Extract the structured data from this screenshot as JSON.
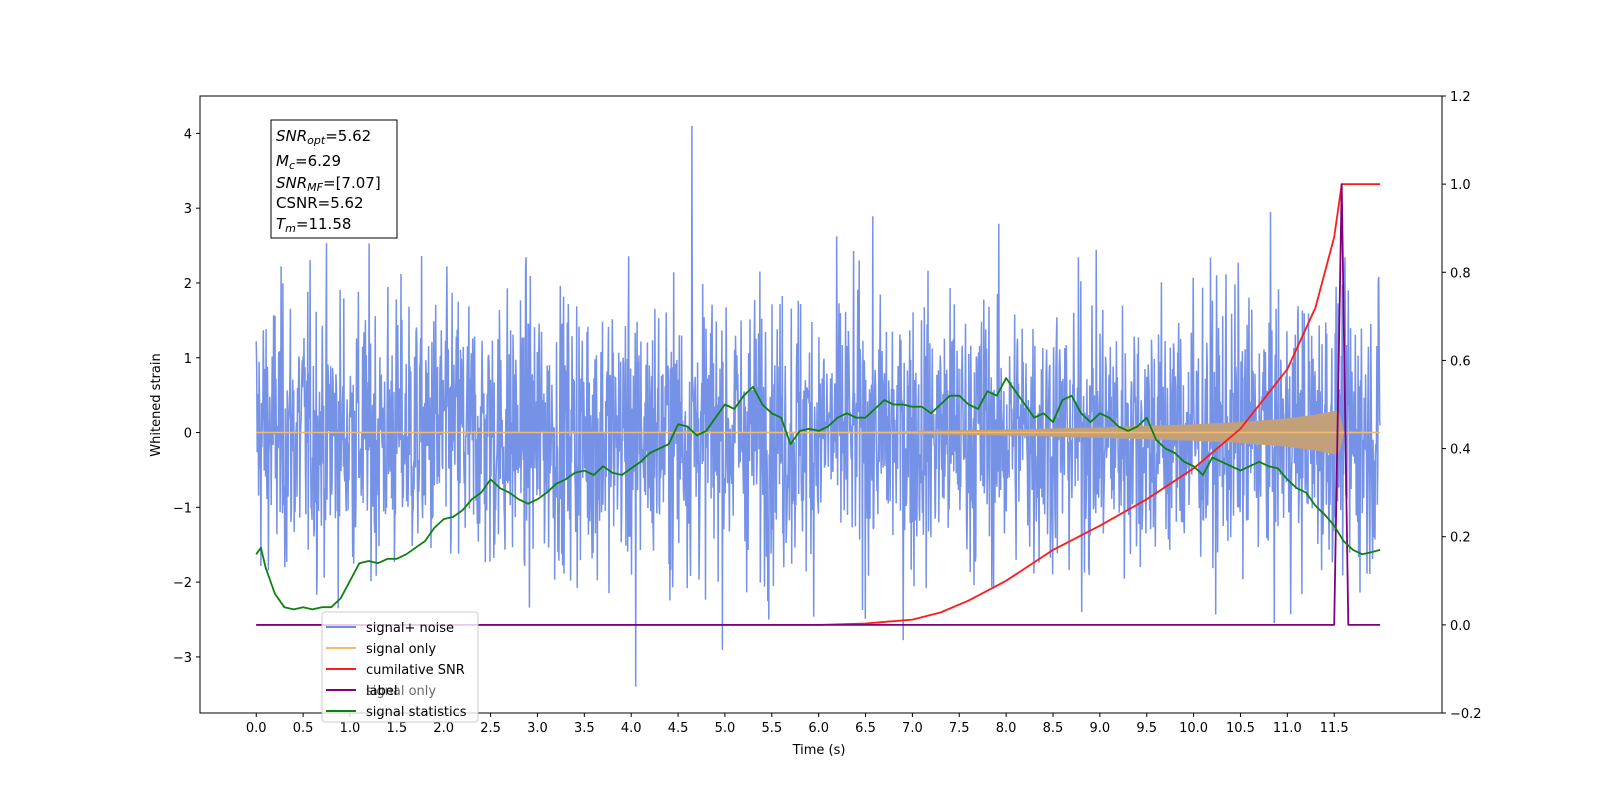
{
  "chart_data": {
    "type": "line",
    "title": "",
    "xlabel": "Time (s)",
    "ylabel": "Whitened strain",
    "xlim": [
      -0.6,
      12.65
    ],
    "ylim": [
      -3.75,
      4.5
    ],
    "y2lim": [
      -0.2,
      1.2
    ],
    "grid": false,
    "legend_position": "lower-left",
    "x_ticks": [
      "0.0",
      "0.5",
      "1.0",
      "1.5",
      "2.0",
      "2.5",
      "3.0",
      "3.5",
      "4.0",
      "4.5",
      "5.0",
      "5.5",
      "6.0",
      "6.5",
      "7.0",
      "7.5",
      "8.0",
      "8.5",
      "9.0",
      "9.5",
      "10.0",
      "10.5",
      "11.0",
      "11.5"
    ],
    "y_ticks": [
      "4",
      "3",
      "2",
      "1",
      "0",
      "−1",
      "−2",
      "−3"
    ],
    "y2_ticks": [
      "1.2",
      "1.0",
      "0.8",
      "0.6",
      "0.4",
      "0.2",
      "0.0",
      "−0.2"
    ],
    "annotation": {
      "snr_opt": "=5.62",
      "mc": "=6.29",
      "snr_mf": "=[7.07]",
      "csnr": "CSNR=5.62",
      "tm": "=11.58"
    },
    "series": [
      {
        "name": "signal+ noise",
        "color": "#6f8ce6",
        "axis": "left",
        "description_values": "whitened noisy strain, roughly uniform envelope about ±2.2 with spikes up to 4.1 (t≈4.65) and down to -3.4 (t≈4.05)",
        "x_range": [
          0.0,
          11.99
        ]
      },
      {
        "name": "signal only",
        "color": "#f0bb6e",
        "axis": "left",
        "envelope": {
          "x": [
            0.0,
            6.5,
            8.0,
            9.0,
            10.0,
            10.5,
            11.0,
            11.3,
            11.55,
            11.6,
            11.99
          ],
          "amplitude": [
            0.0,
            0.01,
            0.04,
            0.07,
            0.11,
            0.14,
            0.19,
            0.24,
            0.3,
            0.02,
            0.0
          ]
        }
      },
      {
        "name": "cumilative SNR",
        "color": "#ff1a1a",
        "axis": "right",
        "x": [
          0.0,
          6.0,
          6.5,
          7.0,
          7.3,
          7.6,
          8.0,
          8.5,
          9.0,
          9.5,
          10.0,
          10.5,
          11.0,
          11.3,
          11.5,
          11.58,
          11.99
        ],
        "y": [
          0.0,
          0.0,
          0.003,
          0.012,
          0.028,
          0.055,
          0.1,
          0.17,
          0.225,
          0.285,
          0.355,
          0.445,
          0.58,
          0.72,
          0.88,
          1.0,
          1.0
        ]
      },
      {
        "name": "label",
        "color": "#800080",
        "axis": "right",
        "x": [
          0.0,
          11.5,
          11.58,
          11.65,
          11.99
        ],
        "y": [
          0.0,
          0.0,
          1.0,
          0.0,
          0.0
        ]
      },
      {
        "name": "signal statistics",
        "color": "#108010",
        "axis": "right",
        "x": [
          0.0,
          0.05,
          0.1,
          0.2,
          0.3,
          0.4,
          0.5,
          0.6,
          0.7,
          0.8,
          0.9,
          1.0,
          1.1,
          1.2,
          1.3,
          1.4,
          1.5,
          1.6,
          1.7,
          1.8,
          1.9,
          2.0,
          2.1,
          2.2,
          2.3,
          2.4,
          2.5,
          2.6,
          2.7,
          2.8,
          2.9,
          3.0,
          3.1,
          3.2,
          3.3,
          3.4,
          3.5,
          3.6,
          3.7,
          3.8,
          3.9,
          4.0,
          4.1,
          4.2,
          4.3,
          4.4,
          4.5,
          4.6,
          4.7,
          4.8,
          4.9,
          5.0,
          5.1,
          5.2,
          5.3,
          5.4,
          5.5,
          5.6,
          5.7,
          5.8,
          5.9,
          6.0,
          6.1,
          6.2,
          6.3,
          6.4,
          6.5,
          6.6,
          6.7,
          6.8,
          6.9,
          7.0,
          7.1,
          7.2,
          7.3,
          7.4,
          7.5,
          7.6,
          7.7,
          7.8,
          7.9,
          8.0,
          8.1,
          8.2,
          8.3,
          8.4,
          8.5,
          8.6,
          8.7,
          8.8,
          8.9,
          9.0,
          9.1,
          9.2,
          9.3,
          9.4,
          9.5,
          9.6,
          9.7,
          9.8,
          9.9,
          10.0,
          10.1,
          10.2,
          10.3,
          10.4,
          10.5,
          10.6,
          10.7,
          10.8,
          10.9,
          11.0,
          11.1,
          11.2,
          11.3,
          11.4,
          11.5,
          11.6,
          11.7,
          11.8,
          11.9,
          11.99
        ],
        "y": [
          0.16,
          0.175,
          0.13,
          0.07,
          0.04,
          0.035,
          0.04,
          0.035,
          0.04,
          0.04,
          0.06,
          0.1,
          0.14,
          0.145,
          0.14,
          0.15,
          0.15,
          0.16,
          0.175,
          0.19,
          0.22,
          0.24,
          0.245,
          0.26,
          0.285,
          0.3,
          0.33,
          0.31,
          0.3,
          0.285,
          0.275,
          0.285,
          0.3,
          0.32,
          0.33,
          0.345,
          0.35,
          0.34,
          0.36,
          0.345,
          0.34,
          0.355,
          0.37,
          0.39,
          0.4,
          0.41,
          0.455,
          0.45,
          0.43,
          0.44,
          0.47,
          0.5,
          0.49,
          0.52,
          0.54,
          0.5,
          0.48,
          0.47,
          0.41,
          0.44,
          0.445,
          0.44,
          0.45,
          0.47,
          0.48,
          0.47,
          0.47,
          0.49,
          0.51,
          0.5,
          0.5,
          0.495,
          0.495,
          0.48,
          0.5,
          0.52,
          0.52,
          0.5,
          0.49,
          0.53,
          0.52,
          0.56,
          0.53,
          0.5,
          0.47,
          0.48,
          0.46,
          0.51,
          0.52,
          0.48,
          0.46,
          0.48,
          0.47,
          0.45,
          0.44,
          0.45,
          0.47,
          0.42,
          0.4,
          0.39,
          0.37,
          0.36,
          0.34,
          0.38,
          0.37,
          0.36,
          0.35,
          0.36,
          0.37,
          0.36,
          0.355,
          0.33,
          0.31,
          0.3,
          0.27,
          0.25,
          0.225,
          0.19,
          0.17,
          0.16,
          0.165,
          0.17
        ]
      }
    ],
    "legend_overlap_text": "signal only"
  }
}
